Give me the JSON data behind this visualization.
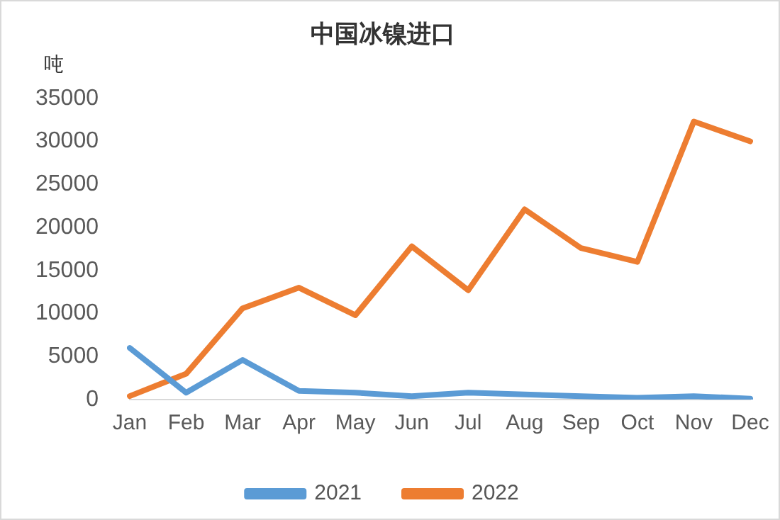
{
  "chart_data": {
    "type": "line",
    "title": "中国冰镍进口",
    "ylabel": "吨",
    "categories": [
      "Jan",
      "Feb",
      "Mar",
      "Apr",
      "May",
      "Jun",
      "Jul",
      "Aug",
      "Sep",
      "Oct",
      "Nov",
      "Dec"
    ],
    "series": [
      {
        "name": "2021",
        "color": "#5b9bd5",
        "values": [
          6000,
          800,
          4600,
          1000,
          800,
          400,
          800,
          600,
          400,
          200,
          400,
          100
        ]
      },
      {
        "name": "2022",
        "color": "#ed7d31",
        "values": [
          400,
          3000,
          10600,
          13000,
          9800,
          17800,
          12700,
          22100,
          17600,
          16000,
          32300,
          30000
        ]
      }
    ],
    "ylim": [
      0,
      35000
    ],
    "yticks": [
      0,
      5000,
      10000,
      15000,
      20000,
      25000,
      30000,
      35000
    ],
    "grid": false,
    "legend": "bottom",
    "marker": "none",
    "line_style": "solid"
  }
}
